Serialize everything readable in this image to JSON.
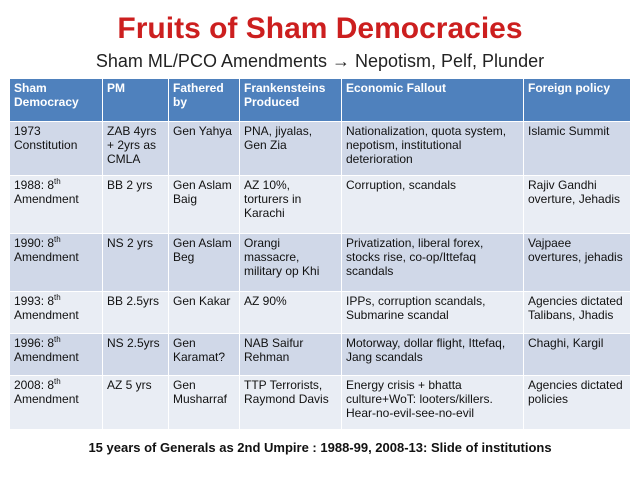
{
  "title": "Fruits of Sham Democracies",
  "subtitle": "Sham ML/PCO Amendments → Nepotism, Pelf, Plunder",
  "table": {
    "headers": [
      "Sham Democracy",
      "PM",
      "Fathered by",
      "Frankensteins Produced",
      "Economic Fallout",
      "Foreign policy"
    ],
    "rows": [
      {
        "democracy": "1973 Constitution",
        "democracy_sup": "",
        "pm": "ZAB 4yrs + 2yrs as CMLA",
        "fathered": "Gen Yahya",
        "frankensteins": "PNA, jiyalas, Gen Zia",
        "economic": "Nationalization, quota system, nepotism, institutional deterioration",
        "foreign": "Islamic Summit"
      },
      {
        "democracy": "1988: 8",
        "democracy_sup": "th",
        "democracy_rest": "Amendment",
        "pm": "BB 2 yrs",
        "fathered": "Gen Aslam Baig",
        "frankensteins": "AZ 10%, torturers in Karachi",
        "economic": "Corruption,  scandals",
        "foreign": "Rajiv Gandhi overture, Jehadis"
      },
      {
        "democracy": "1990: 8",
        "democracy_sup": "th",
        "democracy_rest": "Amendment",
        "pm": "NS 2 yrs",
        "fathered": "Gen Aslam Beg",
        "frankensteins": "Orangi massacre, military op Khi",
        "economic": "Privatization, liberal forex, stocks rise, co-op/Ittefaq scandals",
        "foreign": "Vajpaee overtures, jehadis"
      },
      {
        "democracy": "1993: 8",
        "democracy_sup": "th",
        "democracy_rest": "Amendment",
        "pm": "BB 2.5yrs",
        "fathered": "Gen Kakar",
        "frankensteins": "AZ 90%",
        "economic": "IPPs, corruption scandals, Submarine scandal",
        "foreign": "Agencies dictated Talibans,  Jhadis"
      },
      {
        "democracy": "1996: 8",
        "democracy_sup": "th",
        "democracy_rest": "Amendment",
        "pm": "NS 2.5yrs",
        "fathered": "Gen Karamat?",
        "frankensteins": "NAB Saifur Rehman",
        "economic": "Motorway, dollar flight, Ittefaq, Jang scandals",
        "foreign": "Chaghi, Kargil"
      },
      {
        "democracy": "2008: 8",
        "democracy_sup": "th",
        "democracy_rest": "Amendment",
        "pm": "AZ 5 yrs",
        "fathered": "Gen Musharraf",
        "frankensteins": "TTP Terrorists, Raymond Davis",
        "economic": "Energy crisis + bhatta culture+WoT: looters/killers. Hear-no-evil-see-no-evil",
        "foreign": "Agencies dictated policies"
      }
    ]
  },
  "footer": "15 years of Generals as 2nd Umpire : 1988-99, 2008-13: Slide of institutions"
}
